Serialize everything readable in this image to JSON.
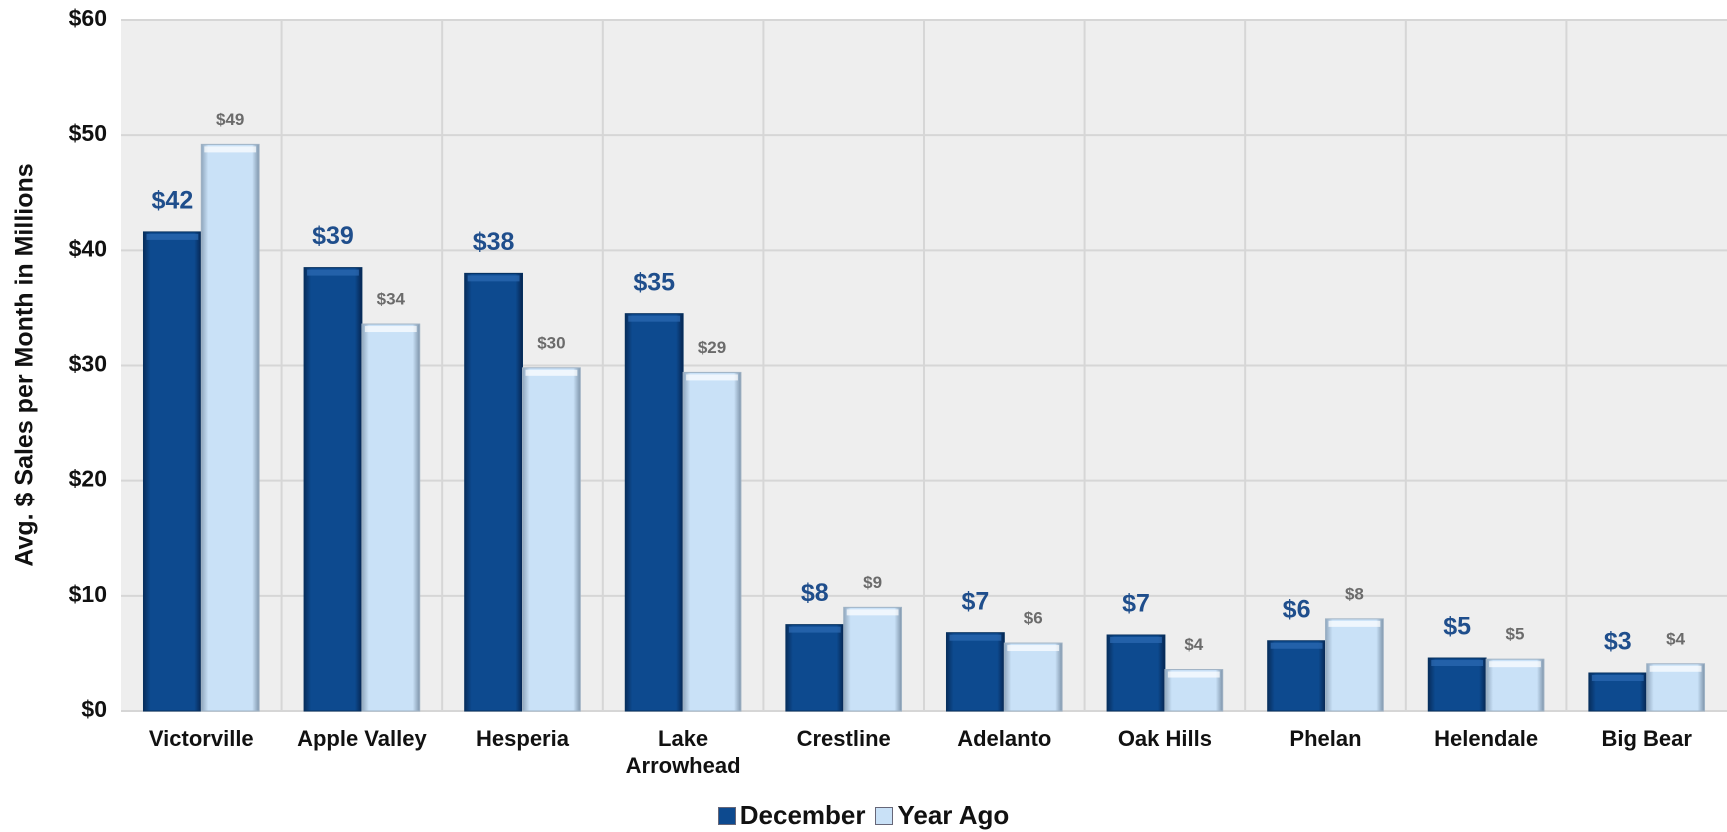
{
  "chart_data": {
    "type": "bar",
    "y_axis_label": "Avg. $ Sales per Month in Millions",
    "categories": [
      "Victorville",
      "Apple Valley",
      "Hesperia",
      "Lake Arrowhead",
      "Crestline",
      "Adelanto",
      "Oak Hills",
      "Phelan",
      "Helendale",
      "Big Bear"
    ],
    "series": [
      {
        "name": "December",
        "color": "#0d4a8f",
        "values": [
          41.6,
          38.5,
          38,
          34.5,
          7.5,
          6.8,
          6.6,
          6.1,
          4.6,
          3.3
        ],
        "value_labels": [
          "$42",
          "$39",
          "$38",
          "$35",
          "$8",
          "$7",
          "$7",
          "$6",
          "$5",
          "$3"
        ]
      },
      {
        "name": "Year Ago",
        "color": "#c9e1f7",
        "values": [
          49.2,
          33.6,
          29.8,
          29.4,
          9.0,
          5.9,
          3.6,
          8.0,
          4.5,
          4.1
        ],
        "value_labels": [
          "$49",
          "$34",
          "$30",
          "$29",
          "$9",
          "$6",
          "$4",
          "$8",
          "$5",
          "$4"
        ]
      }
    ],
    "ylim": [
      0,
      60
    ],
    "yticks": [
      {
        "value": 0,
        "label": "$0"
      },
      {
        "value": 10,
        "label": "$10"
      },
      {
        "value": 20,
        "label": "$20"
      },
      {
        "value": 30,
        "label": "$30"
      },
      {
        "value": 40,
        "label": "$40"
      },
      {
        "value": 50,
        "label": "$50"
      },
      {
        "value": 60,
        "label": "$60"
      }
    ],
    "grid": true,
    "legend": "bottom"
  }
}
